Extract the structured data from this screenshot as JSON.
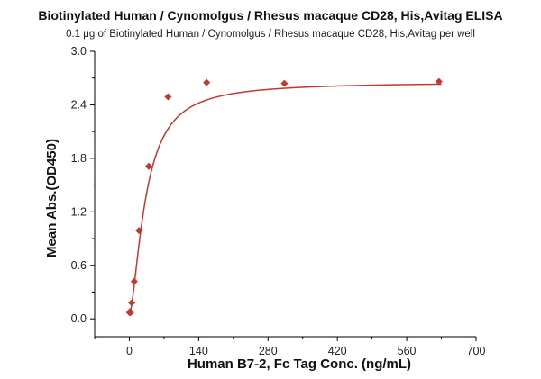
{
  "chart_data": {
    "type": "scatter",
    "title": "Biotinylated Human / Cynomolgus / Rhesus macaque CD28, His,Avitag ELISA",
    "subtitle": "0.1 μg of Biotinylated Human / Cynomolgus / Rhesus macaque CD28, His,Avitag per well",
    "xlabel": "Human B7-2, Fc Tag Conc. (ng/mL)",
    "ylabel": "Mean Abs.(OD450)",
    "xlim": [
      -70,
      700
    ],
    "ylim": [
      -0.2,
      3.0
    ],
    "xticks": [
      0,
      140,
      280,
      420,
      560,
      700
    ],
    "yticks": [
      0.0,
      0.6,
      1.2,
      1.8,
      2.4,
      3.0
    ],
    "xtick_labels": [
      "0",
      "140",
      "280",
      "420",
      "560",
      "700"
    ],
    "ytick_labels": [
      "0.0",
      "0.6",
      "1.2",
      "1.8",
      "2.4",
      "3.0"
    ],
    "marker_color": "#c0392b",
    "curve_color": "#c0392b",
    "series": [
      {
        "x": [
          0.61,
          1.22,
          2.44,
          4.88,
          9.77,
          19.5,
          39.1,
          78.1,
          156,
          313,
          625
        ],
        "y": [
          0.07,
          0.08,
          0.07,
          0.18,
          0.42,
          0.99,
          1.71,
          2.49,
          2.65,
          2.64,
          2.66
        ],
        "fit": "4PL"
      }
    ]
  }
}
